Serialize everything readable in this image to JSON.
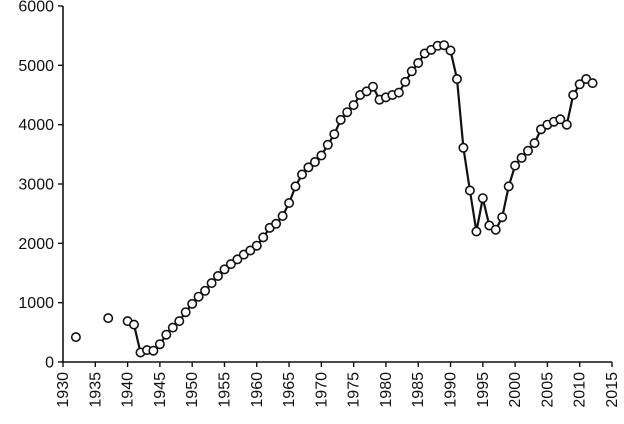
{
  "chart_data": {
    "type": "line",
    "title": "",
    "xlabel": "",
    "ylabel": "",
    "xlim": [
      1930,
      2015
    ],
    "ylim": [
      0,
      6000
    ],
    "grid": false,
    "legend": "none",
    "colors": {
      "line": "#111111",
      "marker_fill": "#ffffff",
      "marker_stroke": "#111111",
      "axis": "#111111"
    },
    "x_ticks": [
      1930,
      1935,
      1940,
      1945,
      1950,
      1955,
      1960,
      1965,
      1970,
      1975,
      1980,
      1985,
      1990,
      1995,
      2000,
      2005,
      2010,
      2015
    ],
    "x_tick_labels": [
      "1930",
      "1935",
      "1940",
      "1945",
      "1950",
      "1955",
      "1960",
      "1965",
      "1970",
      "1975",
      "1980",
      "1985",
      "1990",
      "1995",
      "2000",
      "2005",
      "2010",
      "2015"
    ],
    "y_ticks": [
      0,
      1000,
      2000,
      3000,
      4000,
      5000,
      6000
    ],
    "y_tick_labels": [
      "0",
      "1000",
      "2000",
      "3000",
      "4000",
      "5000",
      "6000"
    ],
    "series": [
      {
        "points": [
          [
            1932,
            420
          ],
          [
            1937,
            740
          ],
          [
            1940,
            690
          ],
          [
            1941,
            630
          ],
          [
            1942,
            160
          ],
          [
            1943,
            200
          ],
          [
            1944,
            190
          ],
          [
            1945,
            300
          ],
          [
            1946,
            460
          ],
          [
            1947,
            580
          ],
          [
            1948,
            690
          ],
          [
            1949,
            840
          ],
          [
            1950,
            980
          ],
          [
            1951,
            1100
          ],
          [
            1952,
            1200
          ],
          [
            1953,
            1330
          ],
          [
            1954,
            1450
          ],
          [
            1955,
            1560
          ],
          [
            1956,
            1650
          ],
          [
            1957,
            1730
          ],
          [
            1958,
            1810
          ],
          [
            1959,
            1880
          ],
          [
            1960,
            1960
          ],
          [
            1961,
            2100
          ],
          [
            1962,
            2260
          ],
          [
            1963,
            2330
          ],
          [
            1964,
            2460
          ],
          [
            1965,
            2680
          ],
          [
            1966,
            2960
          ],
          [
            1967,
            3160
          ],
          [
            1968,
            3280
          ],
          [
            1969,
            3370
          ],
          [
            1970,
            3480
          ],
          [
            1971,
            3660
          ],
          [
            1972,
            3840
          ],
          [
            1973,
            4080
          ],
          [
            1974,
            4210
          ],
          [
            1975,
            4330
          ],
          [
            1976,
            4500
          ],
          [
            1977,
            4560
          ],
          [
            1978,
            4640
          ],
          [
            1979,
            4420
          ],
          [
            1980,
            4460
          ],
          [
            1981,
            4500
          ],
          [
            1982,
            4540
          ],
          [
            1983,
            4720
          ],
          [
            1984,
            4900
          ],
          [
            1985,
            5040
          ],
          [
            1986,
            5200
          ],
          [
            1987,
            5260
          ],
          [
            1988,
            5330
          ],
          [
            1989,
            5340
          ],
          [
            1990,
            5250
          ],
          [
            1991,
            4770
          ],
          [
            1992,
            3610
          ],
          [
            1993,
            2890
          ],
          [
            1994,
            2200
          ],
          [
            1995,
            2760
          ],
          [
            1996,
            2300
          ],
          [
            1997,
            2230
          ],
          [
            1998,
            2440
          ],
          [
            1999,
            2960
          ],
          [
            2000,
            3310
          ],
          [
            2001,
            3440
          ],
          [
            2002,
            3560
          ],
          [
            2003,
            3690
          ],
          [
            2004,
            3920
          ],
          [
            2005,
            4000
          ],
          [
            2006,
            4050
          ],
          [
            2007,
            4090
          ],
          [
            2008,
            4000
          ],
          [
            2009,
            4500
          ],
          [
            2010,
            4680
          ],
          [
            2011,
            4770
          ],
          [
            2012,
            4700
          ]
        ],
        "connected_from_x": 1941
      }
    ]
  }
}
